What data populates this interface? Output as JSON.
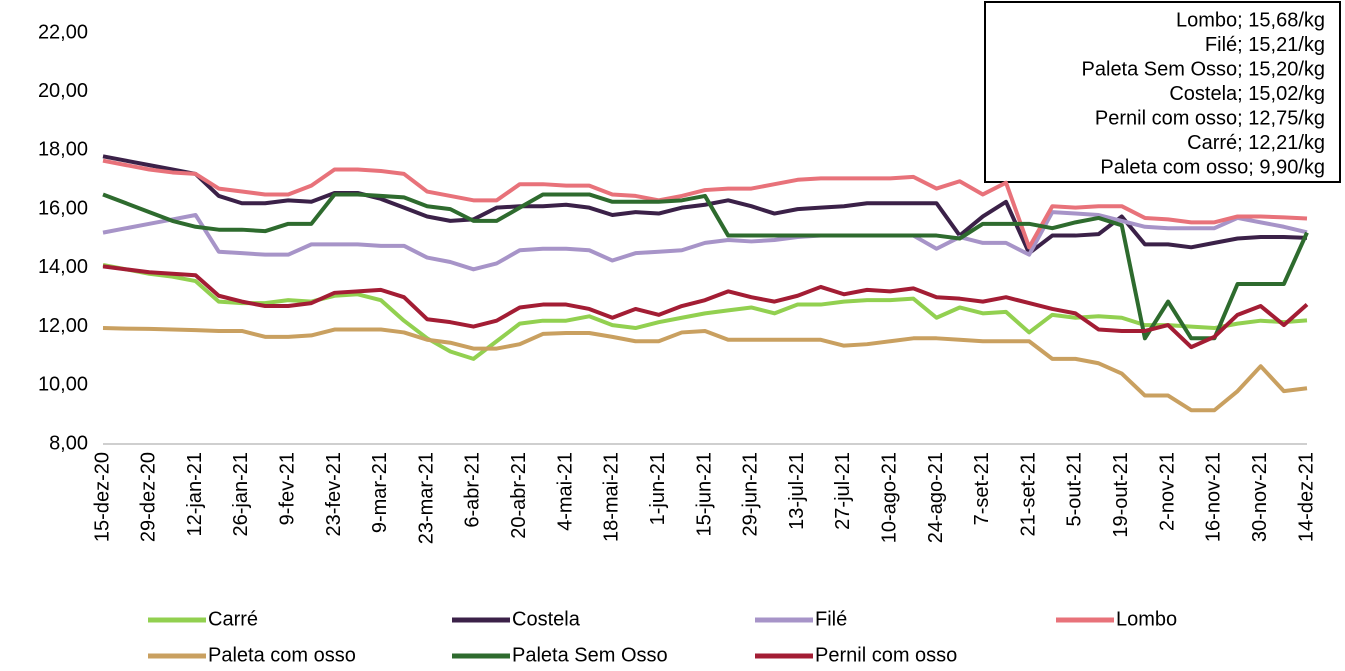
{
  "chart_data": {
    "type": "line",
    "categories": [
      "15-dez-20",
      null,
      "29-dez-20",
      null,
      "12-jan-21",
      null,
      "26-jan-21",
      null,
      "9-fev-21",
      null,
      "23-fev-21",
      null,
      "9-mar-21",
      null,
      "23-mar-21",
      null,
      "6-abr-21",
      null,
      "20-abr-21",
      null,
      "4-mai-21",
      null,
      "18-mai-21",
      null,
      "1-jun-21",
      null,
      "15-jun-21",
      null,
      "29-jun-21",
      null,
      "13-jul-21",
      null,
      "27-jul-21",
      null,
      "10-ago-21",
      null,
      "24-ago-21",
      null,
      "7-set-21",
      null,
      "21-set-21",
      null,
      "5-out-21",
      null,
      "19-out-21",
      null,
      "2-nov-21",
      null,
      "16-nov-21",
      null,
      "30-nov-21",
      null,
      "14-dez-21"
    ],
    "ylim": [
      8,
      22
    ],
    "yticks": [
      {
        "value": 8,
        "label": "8,00"
      },
      {
        "value": 10,
        "label": "10,00"
      },
      {
        "value": 12,
        "label": "12,00"
      },
      {
        "value": 14,
        "label": "14,00"
      },
      {
        "value": 16,
        "label": "16,00"
      },
      {
        "value": 18,
        "label": "18,00"
      },
      {
        "value": 20,
        "label": "20,00"
      },
      {
        "value": 22,
        "label": "22,00"
      }
    ],
    "grid": false,
    "annotations": [
      "Lombo; 15,68/kg",
      "Filé; 15,21/kg",
      "Paleta Sem Osso; 15,20/kg",
      "Costela; 15,02/kg",
      "Pernil com osso; 12,75/kg",
      "Carré; 12,21/kg",
      "Paleta com osso; 9,90/kg"
    ],
    "series": [
      {
        "name": "Carré",
        "color": "#92d050",
        "values": [
          14.1,
          13.95,
          13.8,
          13.7,
          13.55,
          12.85,
          12.8,
          12.8,
          12.9,
          12.85,
          13.05,
          13.1,
          12.9,
          12.2,
          11.6,
          11.15,
          10.9,
          11.5,
          12.1,
          12.2,
          12.2,
          12.35,
          12.05,
          11.95,
          12.15,
          12.3,
          12.45,
          12.55,
          12.65,
          12.45,
          12.75,
          12.75,
          12.85,
          12.9,
          12.9,
          12.95,
          12.3,
          12.65,
          12.45,
          12.5,
          11.8,
          12.4,
          12.3,
          12.35,
          12.3,
          12.05,
          12.05,
          12.0,
          11.95,
          12.1,
          12.2,
          12.15,
          12.21
        ]
      },
      {
        "name": "Costela",
        "color": "#3b2148",
        "values": [
          17.8,
          17.65,
          17.5,
          17.35,
          17.2,
          16.45,
          16.2,
          16.2,
          16.3,
          16.25,
          16.55,
          16.55,
          16.35,
          16.05,
          15.75,
          15.6,
          15.65,
          16.05,
          16.1,
          16.1,
          16.15,
          16.05,
          15.8,
          15.9,
          15.85,
          16.05,
          16.15,
          16.3,
          16.1,
          15.85,
          16.0,
          16.05,
          16.1,
          16.2,
          16.2,
          16.2,
          16.2,
          15.1,
          15.75,
          16.25,
          14.5,
          15.1,
          15.1,
          15.15,
          15.75,
          14.8,
          14.8,
          14.7,
          14.85,
          15.0,
          15.05,
          15.05,
          15.02
        ]
      },
      {
        "name": "Filé",
        "color": "#a794c8",
        "values": [
          15.2,
          15.35,
          15.5,
          15.65,
          15.8,
          14.55,
          14.5,
          14.45,
          14.45,
          14.8,
          14.8,
          14.8,
          14.75,
          14.75,
          14.35,
          14.2,
          13.95,
          14.15,
          14.6,
          14.65,
          14.65,
          14.6,
          14.25,
          14.5,
          14.55,
          14.6,
          14.85,
          14.95,
          14.9,
          14.95,
          15.05,
          15.1,
          15.1,
          15.1,
          15.1,
          15.1,
          14.65,
          15.05,
          14.85,
          14.85,
          14.45,
          15.9,
          15.85,
          15.8,
          15.6,
          15.4,
          15.35,
          15.35,
          15.35,
          15.7,
          15.55,
          15.4,
          15.21
        ]
      },
      {
        "name": "Lombo",
        "color": "#e8727a",
        "values": [
          17.65,
          17.5,
          17.35,
          17.25,
          17.2,
          16.7,
          16.6,
          16.5,
          16.5,
          16.8,
          17.35,
          17.35,
          17.3,
          17.2,
          16.6,
          16.45,
          16.3,
          16.3,
          16.85,
          16.85,
          16.8,
          16.8,
          16.5,
          16.45,
          16.3,
          16.45,
          16.65,
          16.7,
          16.7,
          16.85,
          17.0,
          17.05,
          17.05,
          17.05,
          17.05,
          17.1,
          16.7,
          16.95,
          16.5,
          16.9,
          14.7,
          16.1,
          16.05,
          16.1,
          16.1,
          15.7,
          15.65,
          15.55,
          15.55,
          15.75,
          15.75,
          15.72,
          15.68
        ]
      },
      {
        "name": "Paleta com osso",
        "color": "#c9a060",
        "values": [
          11.95,
          11.93,
          11.92,
          11.9,
          11.88,
          11.85,
          11.85,
          11.65,
          11.65,
          11.7,
          11.9,
          11.9,
          11.9,
          11.8,
          11.55,
          11.45,
          11.25,
          11.25,
          11.4,
          11.75,
          11.78,
          11.78,
          11.65,
          11.5,
          11.5,
          11.8,
          11.85,
          11.55,
          11.55,
          11.55,
          11.55,
          11.55,
          11.35,
          11.4,
          11.5,
          11.6,
          11.6,
          11.55,
          11.5,
          11.5,
          11.5,
          10.9,
          10.9,
          10.75,
          10.4,
          9.65,
          9.65,
          9.15,
          9.15,
          9.8,
          10.65,
          9.8,
          9.9
        ]
      },
      {
        "name": "Paleta Sem Osso",
        "color": "#2e6b2e",
        "values": [
          16.5,
          16.2,
          15.9,
          15.6,
          15.4,
          15.3,
          15.3,
          15.25,
          15.5,
          15.5,
          16.5,
          16.5,
          16.45,
          16.4,
          16.1,
          16.0,
          15.6,
          15.6,
          16.05,
          16.5,
          16.5,
          16.5,
          16.25,
          16.25,
          16.25,
          16.3,
          16.45,
          15.1,
          15.1,
          15.1,
          15.1,
          15.1,
          15.1,
          15.1,
          15.1,
          15.1,
          15.1,
          15.0,
          15.5,
          15.5,
          15.5,
          15.35,
          15.55,
          15.7,
          15.45,
          11.6,
          12.85,
          11.6,
          11.6,
          13.45,
          13.45,
          13.45,
          15.2
        ]
      },
      {
        "name": "Pernil com osso",
        "color": "#a31d34",
        "values": [
          14.05,
          13.95,
          13.85,
          13.8,
          13.75,
          13.05,
          12.85,
          12.7,
          12.7,
          12.8,
          13.15,
          13.2,
          13.25,
          13.0,
          12.25,
          12.15,
          12.0,
          12.2,
          12.65,
          12.75,
          12.75,
          12.6,
          12.3,
          12.6,
          12.4,
          12.7,
          12.9,
          13.2,
          13.0,
          12.85,
          13.05,
          13.35,
          13.1,
          13.25,
          13.2,
          13.3,
          13.0,
          12.95,
          12.85,
          13.0,
          12.8,
          12.6,
          12.45,
          11.9,
          11.85,
          11.85,
          12.05,
          11.3,
          11.65,
          12.4,
          12.7,
          12.05,
          12.75
        ]
      }
    ]
  }
}
